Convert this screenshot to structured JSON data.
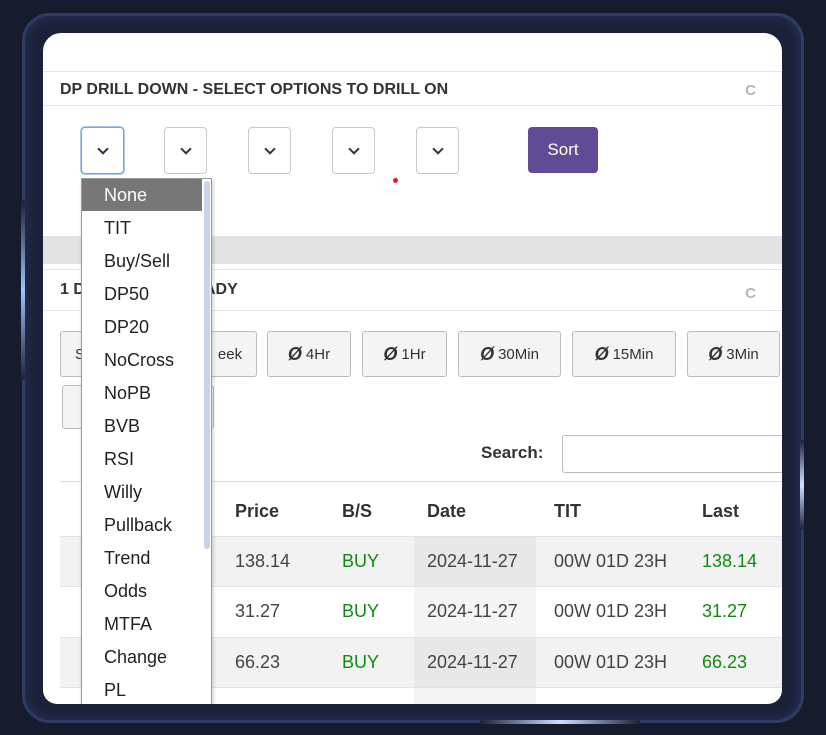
{
  "drill_panel": {
    "title": "DP DRILL DOWN - SELECT OPTIONS TO DRILL ON",
    "refresh_icon": "C",
    "sort_label": "Sort",
    "dropdown_options": [
      "None",
      "TIT",
      "Buy/Sell",
      "DP50",
      "DP20",
      "NoCross",
      "NoPB",
      "BVB",
      "RSI",
      "Willy",
      "Pullback",
      "Trend",
      "Odds",
      "MTFA",
      "Change",
      "PL"
    ]
  },
  "data_panel": {
    "title_start": "1 D",
    "title_end": "ADY",
    "refresh_icon": "C",
    "timeframe_buttons": [
      {
        "partial": "S"
      },
      {
        "label": "eek"
      },
      {
        "symbol": "Ø",
        "label": "4Hr"
      },
      {
        "symbol": "Ø",
        "label": "1Hr"
      },
      {
        "symbol": "Ø",
        "label": "30Min"
      },
      {
        "symbol": "Ø",
        "label": "15Min"
      },
      {
        "symbol": "Ø",
        "label": "3Min"
      }
    ],
    "search_label": "Search:",
    "search_value": "",
    "columns": [
      "Price",
      "B/S",
      "Date",
      "TIT",
      "Last"
    ],
    "rows": [
      {
        "price": "138.14",
        "bs": "BUY",
        "date": "2024-11-27",
        "tit": "00W 01D 23H",
        "last": "138.14"
      },
      {
        "price": "31.27",
        "bs": "BUY",
        "date": "2024-11-27",
        "tit": "00W 01D 23H",
        "last": "31.27"
      },
      {
        "price": "66.23",
        "bs": "BUY",
        "date": "2024-11-27",
        "tit": "00W 01D 23H",
        "last": "66.23"
      }
    ]
  },
  "colors": {
    "sort_button": "#5f4b96",
    "buy_green": "#118a11"
  }
}
